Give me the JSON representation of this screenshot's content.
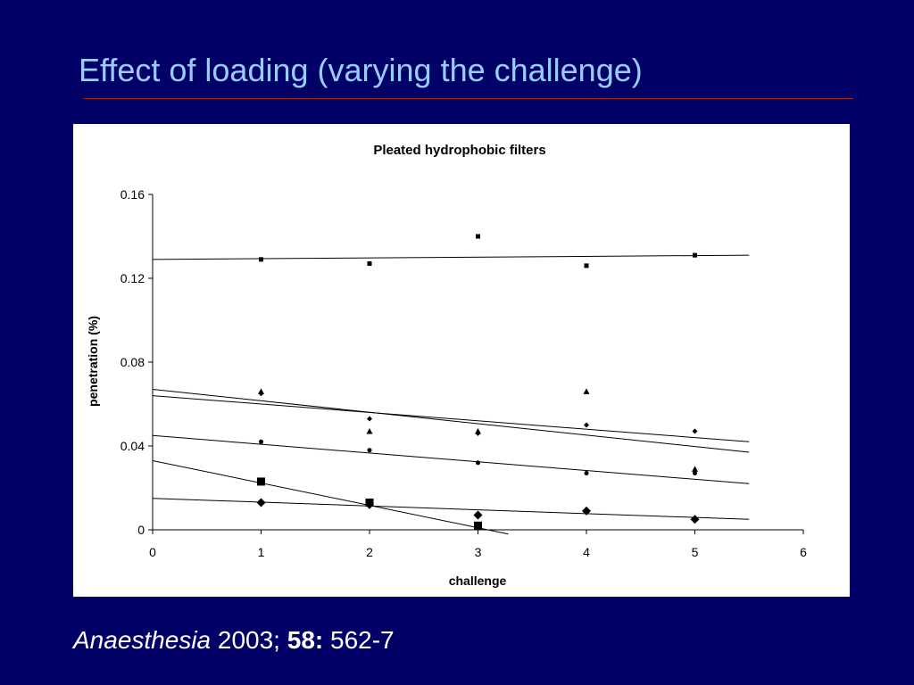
{
  "slide": {
    "title": "Effect of loading (varying the challenge)",
    "colors": {
      "background": "#000066",
      "title": "#99ccff",
      "rule": "#a02020",
      "citation": "#ffffff"
    }
  },
  "citation": {
    "journal": "Anaesthesia",
    "year": "2003;",
    "volume": "58:",
    "pages": "562-7"
  },
  "chart_data": {
    "type": "scatter",
    "title": "Pleated hydrophobic filters",
    "xlabel": "challenge",
    "ylabel": "penetration (%)",
    "xlim": [
      0,
      6
    ],
    "ylim": [
      0,
      0.16
    ],
    "xticks": [
      "0",
      "1",
      "2",
      "3",
      "4",
      "5",
      "6"
    ],
    "yticks": [
      "0",
      "0.04",
      "0.08",
      "0.12",
      "0.16"
    ],
    "grid": false,
    "legend": "none",
    "series": [
      {
        "marker": "small-square",
        "x": [
          1,
          2,
          3,
          4,
          5
        ],
        "y": [
          0.129,
          0.127,
          0.14,
          0.126,
          0.131
        ],
        "trendline": [
          [
            0,
            0.129
          ],
          [
            5.5,
            0.131
          ]
        ]
      },
      {
        "marker": "small-triangle",
        "x": [
          1,
          2,
          3,
          4,
          5
        ],
        "y": [
          0.066,
          0.047,
          0.047,
          0.066,
          0.029
        ],
        "trendline": [
          [
            0,
            0.067
          ],
          [
            5.5,
            0.037
          ]
        ]
      },
      {
        "marker": "small-diamond",
        "x": [
          1,
          2,
          3,
          4,
          5
        ],
        "y": [
          0.065,
          0.053,
          0.046,
          0.05,
          0.047
        ],
        "trendline": [
          [
            0,
            0.064
          ],
          [
            5.5,
            0.042
          ]
        ]
      },
      {
        "marker": "small-circle",
        "x": [
          1,
          2,
          3,
          4,
          5
        ],
        "y": [
          0.042,
          0.038,
          0.032,
          0.027,
          0.027
        ],
        "trendline": [
          [
            0,
            0.045
          ],
          [
            5.5,
            0.022
          ]
        ]
      },
      {
        "marker": "large-square",
        "x": [
          1,
          2,
          3
        ],
        "y": [
          0.023,
          0.013,
          0.002
        ],
        "trendline": [
          [
            0,
            0.033
          ],
          [
            3.28,
            -0.002
          ]
        ]
      },
      {
        "marker": "large-diamond",
        "x": [
          1,
          2,
          3,
          4,
          5
        ],
        "y": [
          0.013,
          0.012,
          0.007,
          0.009,
          0.005
        ],
        "trendline": [
          [
            0,
            0.015
          ],
          [
            5.5,
            0.005
          ]
        ]
      }
    ]
  }
}
